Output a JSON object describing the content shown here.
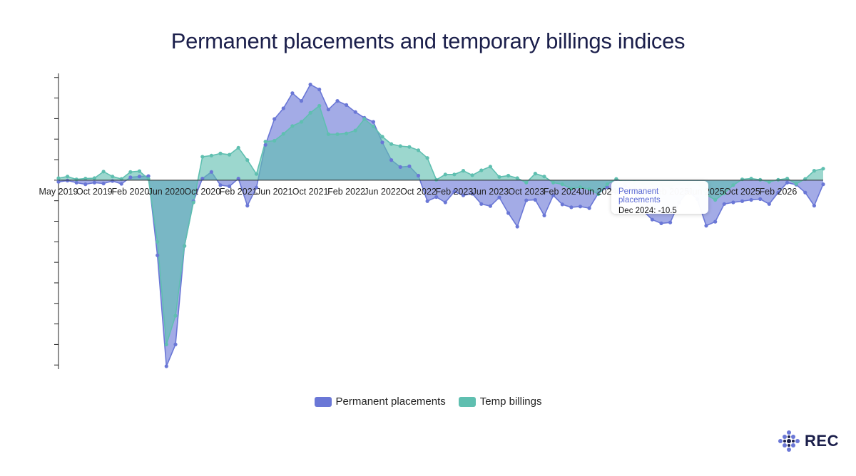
{
  "colors": {
    "permanent": "#6a77d6",
    "temp": "#5fbfb0",
    "title": "#1b1f4b",
    "axis": "#222222"
  },
  "chart_data": {
    "type": "area",
    "title": "Permanent placements and temporary billings indices",
    "xlabel": "",
    "ylabel": "",
    "x_tick_labels": [
      "May 2019",
      "Oct 2019",
      "Feb 2020",
      "Jun 2020",
      "Oct 2020",
      "Feb 2021",
      "Jun 2021",
      "Oct 2021",
      "Feb 2022",
      "Jun 2022",
      "Oct 2022",
      "Feb 2023",
      "Jun 2023",
      "Oct 2023",
      "Feb 2024",
      "Jun 2024",
      "Oct 2024",
      "Feb 2025",
      "Jun 2025",
      "Oct 2025",
      "Feb 2026"
    ],
    "x": [
      "May 2019",
      "Jun 2019",
      "Jul 2019",
      "Aug 2019",
      "Sep 2019",
      "Oct 2019",
      "Nov 2019",
      "Dec 2019",
      "Jan 2020",
      "Feb 2020",
      "Mar 2020",
      "Apr 2020",
      "May 2020",
      "Jun 2020",
      "Jul 2020",
      "Aug 2020",
      "Sep 2020",
      "Oct 2020",
      "Nov 2020",
      "Dec 2020",
      "Jan 2021",
      "Feb 2021",
      "Mar 2021",
      "Apr 2021",
      "May 2021",
      "Jun 2021",
      "Jul 2021",
      "Aug 2021",
      "Sep 2021",
      "Oct 2021",
      "Nov 2021",
      "Dec 2021",
      "Jan 2022",
      "Feb 2022",
      "Mar 2022",
      "Apr 2022",
      "May 2022",
      "Jun 2022",
      "Jul 2022",
      "Aug 2022",
      "Sep 2022",
      "Oct 2022",
      "Nov 2022",
      "Dec 2022",
      "Jan 2023",
      "Feb 2023",
      "Mar 2023",
      "Apr 2023",
      "May 2023",
      "Jun 2023",
      "Jul 2023",
      "Aug 2023",
      "Sep 2023",
      "Oct 2023",
      "Nov 2023",
      "Dec 2023",
      "Jan 2024",
      "Feb 2024",
      "Mar 2024",
      "Apr 2024",
      "May 2024",
      "Jun 2024",
      "Jul 2024",
      "Aug 2024",
      "Sep 2024",
      "Oct 2024",
      "Nov 2024",
      "Dec 2024",
      "Jan 2025",
      "Feb 2025",
      "Mar 2025",
      "Apr 2025",
      "May 2025",
      "Jun 2025",
      "Jul 2025",
      "Aug 2025",
      "Sep 2025",
      "Oct 2025",
      "Nov 2025",
      "Dec 2025",
      "Jan 2026",
      "Feb 2026",
      "Mar 2026",
      "Apr 2026",
      "May 2026",
      "Jun 2026"
    ],
    "series": [
      {
        "name": "Permanent placements",
        "values": [
          -0.4,
          -0.1,
          -0.6,
          -1.0,
          -0.6,
          -0.8,
          -0.2,
          -0.9,
          0.7,
          0.9,
          1.0,
          -18.3,
          -45.3,
          -40.0,
          -16.0,
          -5.1,
          0.4,
          2.0,
          -1.2,
          -1.5,
          0.4,
          -6.2,
          -1.8,
          8.6,
          14.9,
          17.5,
          21.2,
          19.3,
          23.3,
          22.1,
          17.2,
          19.3,
          18.3,
          16.6,
          15.2,
          14.2,
          9.2,
          4.9,
          3.2,
          3.4,
          1.1,
          -5.1,
          -4.1,
          -5.4,
          -2.8,
          -3.7,
          -3.3,
          -5.8,
          -6.3,
          -4.2,
          -8.0,
          -11.3,
          -4.9,
          -4.8,
          -8.6,
          -3.7,
          -5.9,
          -6.6,
          -6.4,
          -6.8,
          -3.2,
          -1.7,
          -3.0,
          -1.4,
          -2.6,
          -7.5,
          -9.6,
          -10.5,
          -10.3,
          -5.4,
          -2.6,
          -4.6,
          -11.1,
          -10.1,
          -5.8,
          -5.4,
          -5.1,
          -4.8,
          -4.6,
          -5.8,
          -3.0,
          -0.6,
          -1.1,
          -3.0,
          -6.2,
          -1.0
        ]
      },
      {
        "name": "Temp billings",
        "values": [
          0.5,
          0.9,
          0.2,
          0.4,
          0.5,
          2.1,
          0.9,
          0.3,
          2.0,
          2.2,
          0.3,
          -15.0,
          -40.0,
          -33.0,
          -16.0,
          -5.4,
          5.7,
          6.0,
          6.5,
          6.2,
          7.9,
          4.9,
          1.5,
          9.4,
          9.6,
          11.3,
          13.2,
          14.2,
          16.4,
          18.1,
          11.2,
          11.2,
          11.4,
          12.1,
          14.9,
          13.1,
          10.6,
          8.8,
          8.3,
          8.1,
          7.3,
          5.4,
          0.1,
          1.4,
          1.4,
          2.3,
          1.2,
          2.4,
          3.3,
          0.8,
          1.1,
          0.5,
          -0.6,
          1.6,
          0.9,
          -0.6,
          -1.0,
          -2.1,
          -1.7,
          -2.2,
          -3.4,
          -1.0,
          0.3,
          -0.6,
          -0.5,
          -0.9,
          -0.8,
          -1.2,
          -1.6,
          -0.8,
          -1.1,
          -0.6,
          -3.5,
          -4.8,
          -3.2,
          -1.2,
          0.2,
          0.4,
          0.1,
          -0.4,
          0.1,
          0.4,
          -0.9,
          0.3,
          2.3,
          2.8
        ]
      }
    ],
    "ylim": [
      -46,
      26
    ],
    "y_tick_step": 5,
    "grid": false,
    "legend": "bottom-center"
  },
  "legend": {
    "items": [
      {
        "label": "Permanent placements",
        "color": "#6a77d6"
      },
      {
        "label": "Temp billings",
        "color": "#5fbfb0"
      }
    ]
  },
  "tooltip": {
    "series": "Permanent placements",
    "value": "Dec 2024: -10.5"
  },
  "brand": {
    "text": "REC",
    "icon": "rec-logo-diamond-icon"
  }
}
